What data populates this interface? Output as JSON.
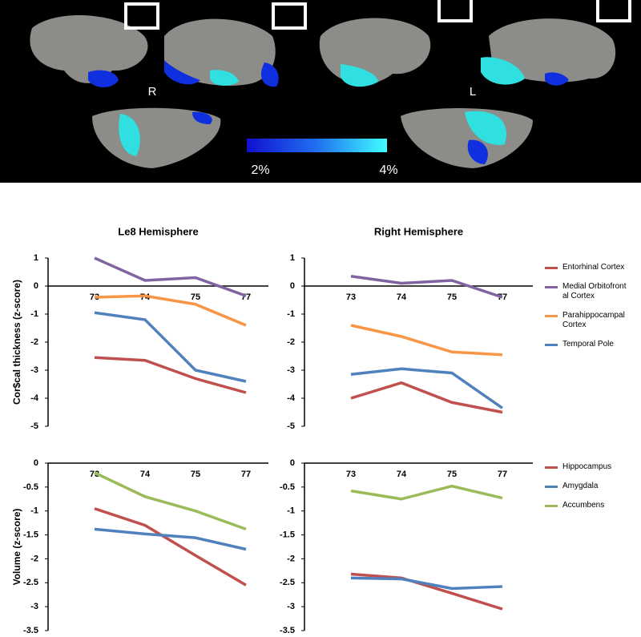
{
  "brain_panel": {
    "hemisphere_labels": [
      "R",
      "L"
    ],
    "colorbar_labels": [
      "2%",
      "4%"
    ]
  },
  "chart_data": [
    {
      "type": "line",
      "title": "Le8 Hemisphere",
      "y_label": "Cor$cal thickness (z-score)",
      "categories": [
        "73",
        "74",
        "75",
        "77"
      ],
      "ylim": [
        -5,
        1
      ],
      "yticks": [
        -5,
        -4,
        -3,
        -2,
        -1,
        0,
        1
      ],
      "series": [
        {
          "color": "#c0504d",
          "values": [
            -2.55,
            -2.65,
            -3.3,
            -3.8
          ]
        },
        {
          "color": "#8064a2",
          "values": [
            1.0,
            0.2,
            0.3,
            -0.35
          ]
        },
        {
          "color": "#f79646",
          "values": [
            -0.4,
            -0.35,
            -0.65,
            -1.4
          ]
        },
        {
          "color": "#4f81bd",
          "values": [
            -0.95,
            -1.2,
            -3.0,
            -3.4
          ]
        }
      ]
    },
    {
      "type": "line",
      "title": "Right Hemisphere",
      "legend": "right",
      "categories": [
        "73",
        "74",
        "75",
        "77"
      ],
      "ylim": [
        -5,
        1
      ],
      "yticks": [
        -5,
        -4,
        -3,
        -2,
        -1,
        0,
        1
      ],
      "series": [
        {
          "name": "Entorhinal Cortex",
          "color": "#c0504d",
          "values": [
            -4.0,
            -3.45,
            -4.15,
            -4.5
          ]
        },
        {
          "name": "Medial Orbitofrontal Cortex",
          "color": "#8064a2",
          "values": [
            0.35,
            0.1,
            0.2,
            -0.4
          ]
        },
        {
          "name": "Parahippocampal Cortex",
          "color": "#f79646",
          "values": [
            -1.4,
            -1.8,
            -2.35,
            -2.45
          ]
        },
        {
          "name": "Temporal Pole",
          "color": "#4f81bd",
          "values": [
            -3.15,
            -2.95,
            -3.1,
            -4.35
          ]
        }
      ]
    },
    {
      "type": "line",
      "y_label": "Volume (z-score)",
      "categories": [
        "73",
        "74",
        "75",
        "77"
      ],
      "ylim": [
        -3.5,
        0
      ],
      "yticks": [
        -3.5,
        -3,
        -2.5,
        -2,
        -1.5,
        -1,
        -0.5,
        0
      ],
      "series": [
        {
          "color": "#c0504d",
          "values": [
            -0.95,
            -1.3,
            -1.93,
            -2.55
          ]
        },
        {
          "color": "#4f81bd",
          "values": [
            -1.38,
            -1.48,
            -1.56,
            -1.8
          ]
        },
        {
          "color": "#9bbb59",
          "values": [
            -0.2,
            -0.7,
            -1.0,
            -1.38
          ]
        }
      ]
    },
    {
      "type": "line",
      "legend": "right",
      "categories": [
        "73",
        "74",
        "75",
        "77"
      ],
      "ylim": [
        -3.5,
        0
      ],
      "yticks": [
        -3.5,
        -3,
        -2.5,
        -2,
        -1.5,
        -1,
        -0.5,
        0
      ],
      "series": [
        {
          "name": "Hippocampus",
          "color": "#c0504d",
          "values": [
            -2.32,
            -2.4,
            -2.72,
            -3.05
          ]
        },
        {
          "name": "Amygdala",
          "color": "#4f81bd",
          "values": [
            -2.4,
            -2.42,
            -2.62,
            -2.58
          ]
        },
        {
          "name": "Accumbens",
          "color": "#9bbb59",
          "values": [
            -0.58,
            -0.75,
            -0.48,
            -0.73
          ]
        }
      ]
    }
  ]
}
